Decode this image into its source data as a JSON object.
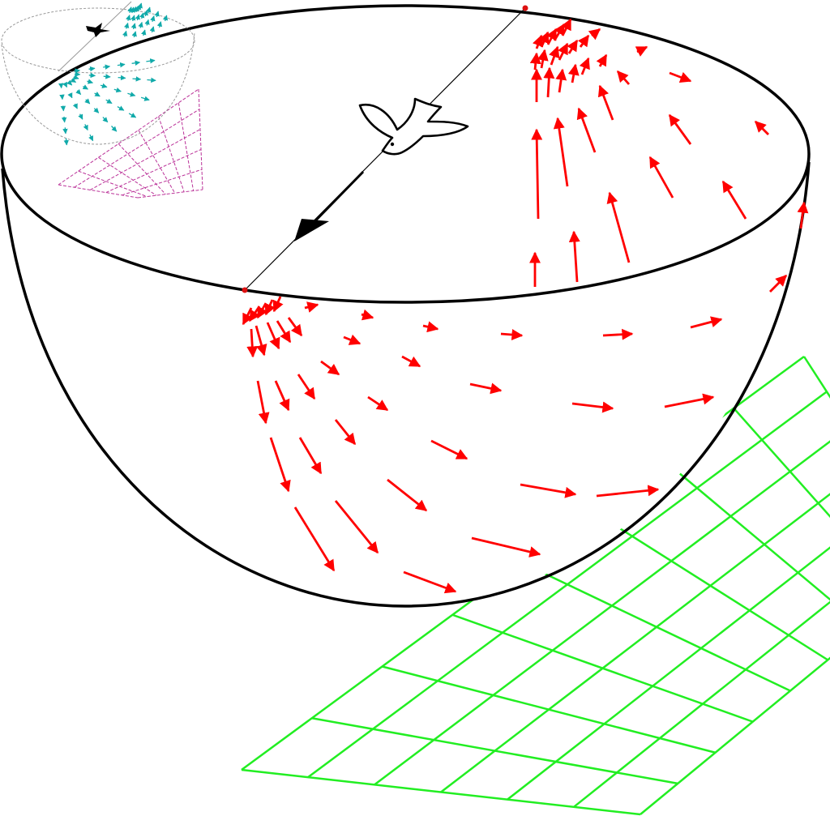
{
  "figure": {
    "colors": {
      "background": "#ffffff",
      "outline": "#000000",
      "main_field_arrows": "#ff0000",
      "main_grid": "#22ee22",
      "inset_field_arrows": "#11aaaa",
      "inset_grid": "#bb3399",
      "inset_outline": "#999999",
      "pole_marker": "#dd1111"
    },
    "icons": {
      "bird": "bird-in-flight-icon",
      "inset_bird": "small-bird-icon",
      "direction": "arrowhead-icon"
    }
  }
}
